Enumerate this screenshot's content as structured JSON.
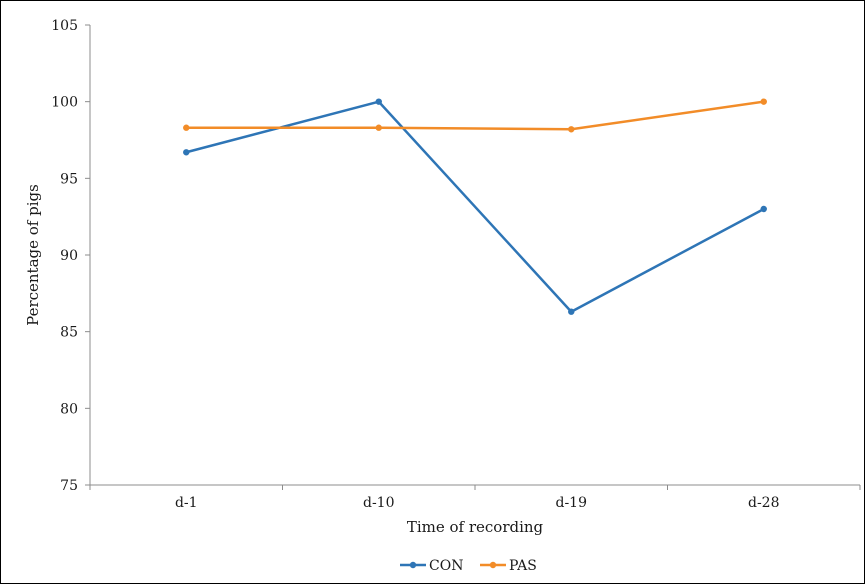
{
  "chart_data": {
    "type": "line",
    "categories": [
      "d-1",
      "d-10",
      "d-19",
      "d-28"
    ],
    "series": [
      {
        "name": "CON",
        "values": [
          96.7,
          100.0,
          86.3,
          93.0
        ],
        "color": "#2E75B6"
      },
      {
        "name": "PAS",
        "values": [
          98.3,
          98.3,
          98.2,
          100.0
        ],
        "color": "#F28C28"
      }
    ],
    "xlabel": "Time of recording",
    "ylabel": "Percentage of pigs",
    "ylim": [
      75,
      105
    ],
    "yticks": [
      75,
      80,
      85,
      90,
      95,
      100,
      105
    ],
    "grid": false,
    "legend_position": "bottom"
  }
}
